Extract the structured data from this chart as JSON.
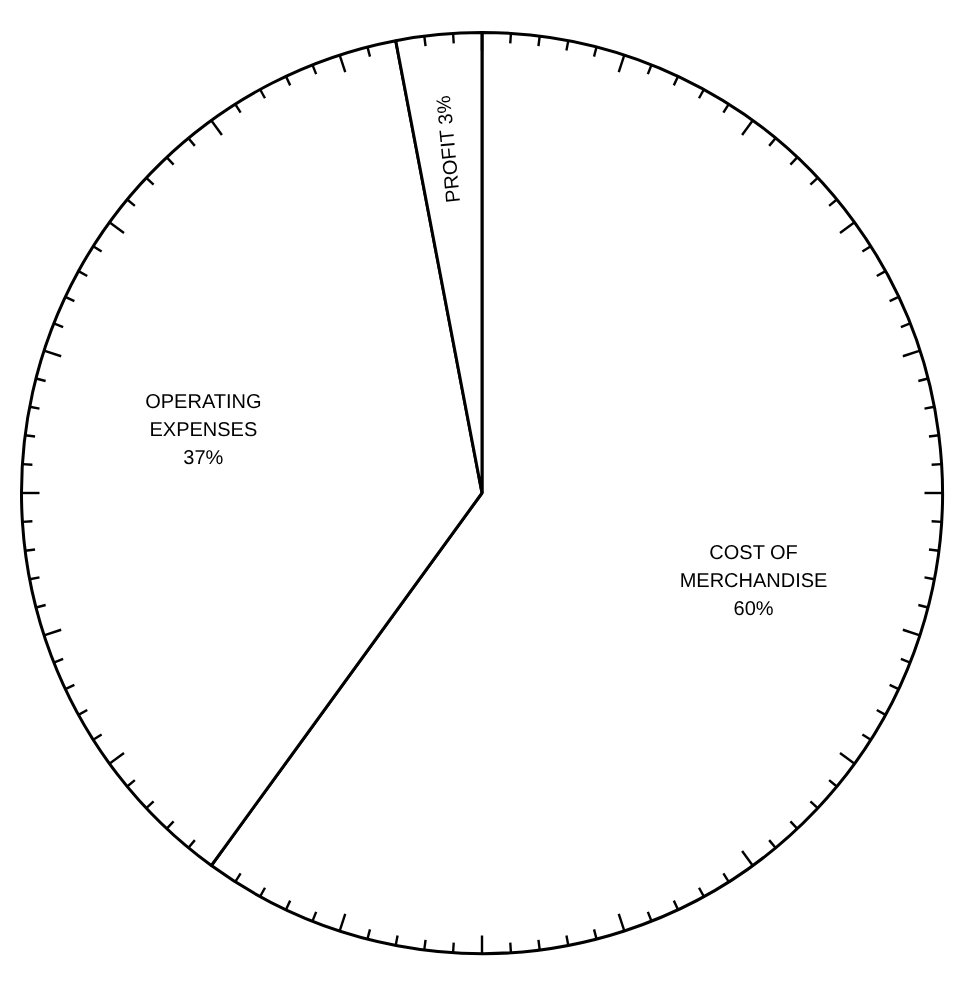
{
  "chart_data": {
    "type": "pie",
    "categories": [
      "COST OF MERCHANDISE",
      "OPERATING EXPENSES",
      "PROFIT"
    ],
    "values": [
      60,
      37,
      3
    ],
    "value_labels": [
      "60%",
      "37%",
      "3%"
    ],
    "colors": [
      "#ffffff",
      "#ffffff",
      "#ffffff"
    ],
    "legend": false
  }
}
